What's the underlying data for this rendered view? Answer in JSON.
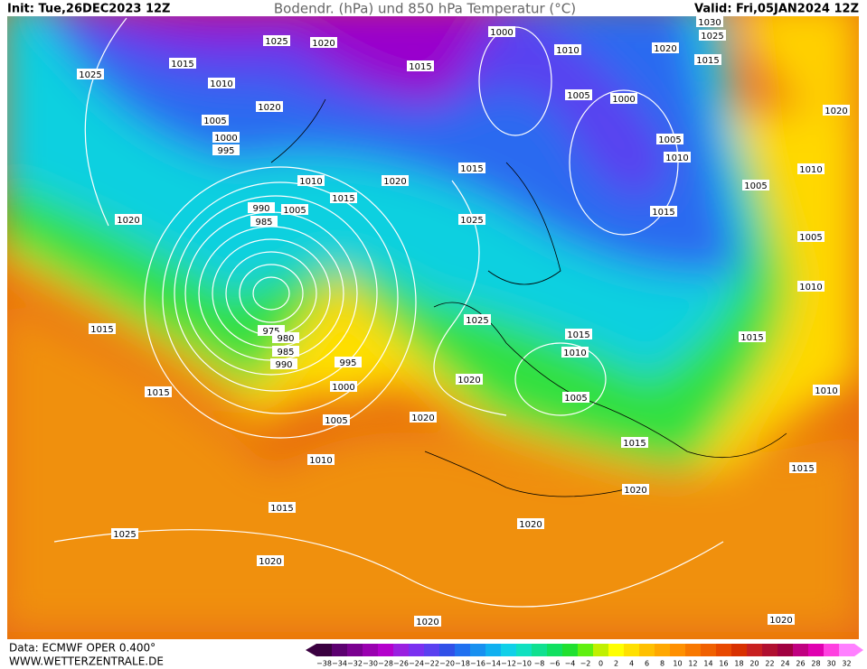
{
  "header": {
    "init": "Init: Tue,26DEC2023 12Z",
    "title": "Bodendr. (hPa) und 850 hPa Temperatur (°C)",
    "valid": "Valid: Fri,05JAN2024 12Z"
  },
  "isobar_labels": [
    "1025",
    "1020",
    "1000",
    "1010",
    "1020",
    "1030",
    "1025",
    "1015",
    "1025",
    "1015",
    "1010",
    "1015",
    "1005",
    "1000",
    "1020",
    "1005",
    "1000",
    "995",
    "1020",
    "1005",
    "1010",
    "1015",
    "1010",
    "1020",
    "1010",
    "1005",
    "1015",
    "990",
    "985",
    "1005",
    "1025",
    "1020",
    "1015",
    "1005",
    "1010",
    "1015",
    "1025",
    "975",
    "980",
    "985",
    "990",
    "995",
    "1015",
    "1010",
    "1015",
    "1015",
    "1000",
    "1020",
    "1005",
    "1010",
    "1005",
    "1020",
    "1015",
    "1010",
    "1015",
    "1020",
    "1015",
    "1020",
    "1025",
    "1020",
    "1020",
    "1020"
  ],
  "colorbar": {
    "labels": [
      "−38",
      "−34",
      "−32",
      "−30",
      "−28",
      "−26",
      "−24",
      "−22",
      "−20",
      "−18",
      "−16",
      "−14",
      "−12",
      "−10",
      "−8",
      "−6",
      "−4",
      "−2",
      "0",
      "2",
      "4",
      "6",
      "8",
      "10",
      "12",
      "14",
      "16",
      "18",
      "20",
      "22",
      "24",
      "26",
      "28",
      "30",
      "32"
    ],
    "colors": [
      "#3a0040",
      "#5c0070",
      "#7a0090",
      "#9a00b0",
      "#b400cc",
      "#9a20e0",
      "#7a30f0",
      "#5a40f0",
      "#3050e8",
      "#2070f0",
      "#1890f0",
      "#10b0f0",
      "#10d0e8",
      "#10e0c0",
      "#10e090",
      "#10e060",
      "#20e030",
      "#60f010",
      "#c0f000",
      "#ffff00",
      "#ffe000",
      "#ffc000",
      "#ffa800",
      "#ff9000",
      "#f87800",
      "#f06000",
      "#e84800",
      "#d83000",
      "#c82020",
      "#b01030",
      "#a00040",
      "#c00080",
      "#e000b0",
      "#ff40e0",
      "#ff80ff"
    ]
  },
  "footer": {
    "data": "Data: ECMWF OPER 0.400°",
    "site": "WWW.WETTERZENTRALE.DE"
  }
}
